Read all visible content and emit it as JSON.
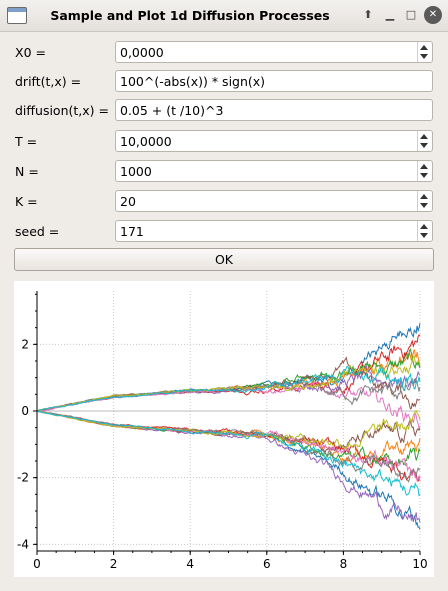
{
  "window": {
    "title": "Sample and Plot 1d Diffusion Processes",
    "controls": [
      "shade-icon",
      "minimize-icon",
      "maximize-icon",
      "close-icon"
    ]
  },
  "form": {
    "x0": {
      "label": "X0 =",
      "value": "0,0000"
    },
    "drift": {
      "label": "drift(t,x) =",
      "value": "100^(-abs(x)) * sign(x)"
    },
    "diffusion": {
      "label": "diffusion(t,x) =",
      "value": "0.05 + (t /10)^3"
    },
    "T": {
      "label": "T =",
      "value": "10,0000"
    },
    "N": {
      "label": "N =",
      "value": "1000"
    },
    "K": {
      "label": "K =",
      "value": "20"
    },
    "seed": {
      "label": "seed =",
      "value": "171"
    }
  },
  "ok_label": "OK",
  "chart_data": {
    "type": "line",
    "title": "",
    "xlabel": "",
    "ylabel": "",
    "xlim": [
      0,
      10
    ],
    "ylim": [
      -4.2,
      3.6
    ],
    "xticks": [
      "0",
      "2",
      "4",
      "6",
      "8",
      "10"
    ],
    "yticks": [
      "-4",
      "-2",
      "0",
      "2"
    ],
    "grid": true,
    "n_paths": 20,
    "colors": [
      "#1f77b4",
      "#ff7f0e",
      "#2ca02c",
      "#d62728",
      "#9467bd",
      "#8c564b",
      "#e377c2",
      "#7f7f7f",
      "#bcbd22",
      "#17becf",
      "#1f77b4",
      "#ff7f0e",
      "#2ca02c",
      "#d62728",
      "#9467bd",
      "#8c564b",
      "#e377c2",
      "#7f7f7f",
      "#bcbd22",
      "#17becf"
    ],
    "series_endpoints": [
      {
        "x": [
          0,
          2,
          4,
          6,
          8,
          10
        ],
        "y": [
          0,
          0.45,
          0.6,
          0.7,
          1.1,
          2.7
        ]
      },
      {
        "x": [
          0,
          2,
          4,
          6,
          8,
          10
        ],
        "y": [
          0,
          0.45,
          0.6,
          0.7,
          0.9,
          1.8
        ]
      },
      {
        "x": [
          0,
          2,
          4,
          6,
          8,
          10
        ],
        "y": [
          0,
          0.45,
          0.6,
          0.75,
          1.2,
          1.4
        ]
      },
      {
        "x": [
          0,
          2,
          4,
          6,
          8,
          10
        ],
        "y": [
          0,
          0.4,
          0.6,
          0.65,
          0.8,
          2.1
        ]
      },
      {
        "x": [
          0,
          2,
          4,
          6,
          8,
          10
        ],
        "y": [
          0,
          0.42,
          0.55,
          0.7,
          0.9,
          1.0
        ]
      },
      {
        "x": [
          0,
          2,
          4,
          6,
          8,
          10
        ],
        "y": [
          0,
          0.45,
          0.6,
          0.7,
          1.3,
          0.3
        ]
      },
      {
        "x": [
          0,
          2,
          4,
          6,
          8,
          10
        ],
        "y": [
          0,
          0.4,
          0.58,
          0.7,
          0.6,
          -0.2
        ]
      },
      {
        "x": [
          0,
          2,
          4,
          6,
          8,
          10
        ],
        "y": [
          0,
          0.45,
          0.6,
          0.72,
          0.5,
          0.6
        ]
      },
      {
        "x": [
          0,
          2,
          4,
          6,
          8,
          10
        ],
        "y": [
          0,
          0.45,
          0.6,
          0.68,
          1.0,
          1.5
        ]
      },
      {
        "x": [
          0,
          2,
          4,
          6,
          8,
          10
        ],
        "y": [
          0,
          0.42,
          0.6,
          0.7,
          1.1,
          0.9
        ]
      },
      {
        "x": [
          0,
          2,
          4,
          6,
          8,
          10
        ],
        "y": [
          0,
          -0.45,
          -0.6,
          -0.75,
          -1.8,
          -3.3
        ]
      },
      {
        "x": [
          0,
          2,
          4,
          6,
          8,
          10
        ],
        "y": [
          0,
          -0.45,
          -0.6,
          -0.7,
          -1.3,
          -1.0
        ]
      },
      {
        "x": [
          0,
          2,
          4,
          6,
          8,
          10
        ],
        "y": [
          0,
          -0.45,
          -0.6,
          -0.7,
          -1.4,
          -1.6
        ]
      },
      {
        "x": [
          0,
          2,
          4,
          6,
          8,
          10
        ],
        "y": [
          0,
          -0.4,
          -0.55,
          -0.7,
          -1.2,
          -1.9
        ]
      },
      {
        "x": [
          0,
          2,
          4,
          6,
          8,
          10
        ],
        "y": [
          0,
          -0.45,
          -0.65,
          -0.8,
          -2.0,
          -3.5
        ]
      },
      {
        "x": [
          0,
          2,
          4,
          6,
          8,
          10
        ],
        "y": [
          0,
          -0.42,
          -0.6,
          -0.72,
          -1.0,
          -0.6
        ]
      },
      {
        "x": [
          0,
          2,
          4,
          6,
          8,
          10
        ],
        "y": [
          0,
          -0.45,
          -0.6,
          -0.7,
          -1.1,
          -2.2
        ]
      },
      {
        "x": [
          0,
          2,
          4,
          6,
          8,
          10
        ],
        "y": [
          0,
          -0.4,
          -0.58,
          -0.7,
          -1.5,
          -1.3
        ]
      },
      {
        "x": [
          0,
          2,
          4,
          6,
          8,
          10
        ],
        "y": [
          0,
          -0.45,
          -0.6,
          -0.68,
          -0.9,
          -0.4
        ]
      },
      {
        "x": [
          0,
          2,
          4,
          6,
          8,
          10
        ],
        "y": [
          0,
          -0.42,
          -0.6,
          -0.72,
          -1.6,
          -2.5
        ]
      }
    ]
  }
}
